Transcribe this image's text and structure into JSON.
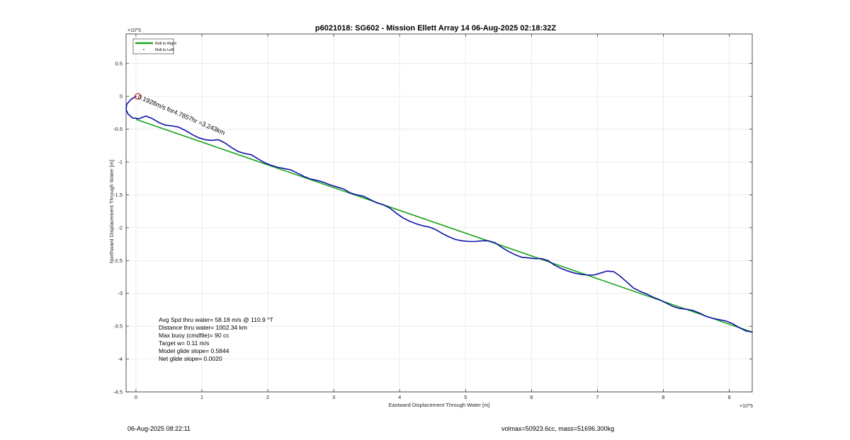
{
  "chart_data": {
    "type": "line",
    "title": "p6021018: SG602 - Mission Ellett Array 14 06-Aug-2025 02:18:32Z",
    "xlabel": "Eastward Displacement Through Water [m]",
    "ylabel": "Northward Displacement Through Water [m]",
    "x_exponent": "×10^5",
    "y_exponent": "×10^5",
    "xlim": [
      -0.15,
      9.35
    ],
    "ylim": [
      -4.5,
      0.95
    ],
    "xticks": [
      0,
      1,
      2,
      3,
      4,
      5,
      6,
      7,
      8,
      9
    ],
    "yticks": [
      0.5,
      0,
      -0.5,
      -1,
      -1.5,
      -2,
      -2.5,
      -3,
      -3.5,
      -4,
      -4.5
    ],
    "xtick_labels": [
      "0",
      "1",
      "2",
      "3",
      "4",
      "5",
      "6",
      "7",
      "8",
      "9"
    ],
    "ytick_labels": [
      "0.5",
      "0",
      "-0.5",
      "-1",
      "-1.5",
      "-2",
      "-2.5",
      "-3",
      "-3.5",
      "-4",
      "-4.5"
    ],
    "grid": true,
    "legend_position": "top-left",
    "legend": [
      {
        "label": "Roll to Right",
        "style": "line",
        "color": "#1aa31a"
      },
      {
        "label": "Roll to Left",
        "style": "dot",
        "color": "#000000"
      }
    ],
    "series": [
      {
        "name": "track",
        "color": "#0b12a8",
        "x": [
          0.0,
          -0.08,
          -0.14,
          -0.15,
          -0.12,
          -0.05,
          0.05,
          0.15,
          0.25,
          0.35,
          0.45,
          0.55,
          0.65,
          0.75,
          0.85,
          0.95,
          1.05,
          1.15,
          1.25,
          1.35,
          1.45,
          1.55,
          1.65,
          1.75,
          1.85,
          1.95,
          2.05,
          2.15,
          2.25,
          2.35,
          2.45,
          2.55,
          2.65,
          2.75,
          2.85,
          2.95,
          3.05,
          3.15,
          3.25,
          3.35,
          3.45,
          3.55,
          3.65,
          3.75,
          3.85,
          3.95,
          4.05,
          4.15,
          4.25,
          4.35,
          4.45,
          4.55,
          4.65,
          4.75,
          4.85,
          4.95,
          5.05,
          5.15,
          5.25,
          5.35,
          5.45,
          5.55,
          5.65,
          5.75,
          5.85,
          5.95,
          6.05,
          6.15,
          6.25,
          6.35,
          6.45,
          6.55,
          6.65,
          6.75,
          6.85,
          6.95,
          7.05,
          7.15,
          7.25,
          7.35,
          7.45,
          7.55,
          7.65,
          7.75,
          7.85,
          7.95,
          8.05,
          8.15,
          8.25,
          8.35,
          8.45,
          8.55,
          8.65,
          8.75,
          8.85,
          8.95,
          9.05,
          9.15,
          9.25,
          9.35
        ],
        "y": [
          0.0,
          -0.05,
          -0.12,
          -0.2,
          -0.27,
          -0.33,
          -0.34,
          -0.3,
          -0.34,
          -0.4,
          -0.44,
          -0.45,
          -0.47,
          -0.52,
          -0.58,
          -0.63,
          -0.66,
          -0.67,
          -0.66,
          -0.71,
          -0.78,
          -0.84,
          -0.87,
          -0.89,
          -0.95,
          -1.01,
          -1.05,
          -1.08,
          -1.1,
          -1.12,
          -1.17,
          -1.22,
          -1.26,
          -1.28,
          -1.31,
          -1.35,
          -1.38,
          -1.41,
          -1.47,
          -1.5,
          -1.52,
          -1.57,
          -1.62,
          -1.65,
          -1.7,
          -1.78,
          -1.85,
          -1.9,
          -1.94,
          -1.97,
          -1.99,
          -2.03,
          -2.09,
          -2.14,
          -2.18,
          -2.2,
          -2.21,
          -2.21,
          -2.2,
          -2.2,
          -2.23,
          -2.3,
          -2.36,
          -2.41,
          -2.45,
          -2.46,
          -2.47,
          -2.47,
          -2.5,
          -2.57,
          -2.62,
          -2.66,
          -2.69,
          -2.71,
          -2.72,
          -2.72,
          -2.69,
          -2.66,
          -2.67,
          -2.74,
          -2.83,
          -2.92,
          -2.97,
          -3.01,
          -3.06,
          -3.1,
          -3.15,
          -3.2,
          -3.23,
          -3.24,
          -3.26,
          -3.3,
          -3.35,
          -3.38,
          -3.4,
          -3.42,
          -3.46,
          -3.52,
          -3.57,
          -3.59
        ]
      },
      {
        "name": "net",
        "color": "#1aa31a",
        "x": [
          0,
          9.35
        ],
        "y": [
          -0.35,
          -3.59
        ]
      }
    ],
    "start_marker": {
      "x": 0.03,
      "y": 0.0,
      "color": "#d01010"
    },
    "track_annotation": "0.1928m/s for4.7857hr =3.243km",
    "annotations": [
      "Avg Spd thru water= 58.18 m/s @ 110.9 °T",
      "Distance thru water= 1002.34 km",
      "Max buoy (cmdfile)= 90 cc",
      "Target w= 0.11 m/s",
      "Model glide slope= 0.5844",
      "Net glide slope= 0.0020"
    ]
  },
  "footer": {
    "left": "06-Aug-2025 08:22:11",
    "right": "volmax=50923.6cc, mass=51696.300kg"
  }
}
